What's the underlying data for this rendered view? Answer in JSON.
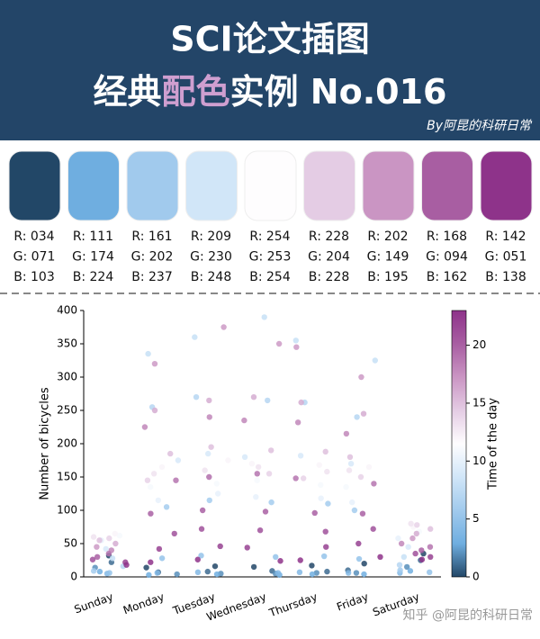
{
  "header": {
    "title": "SCI论文插图",
    "subtitle_parts": [
      "经典",
      "配色",
      "实例 No.016"
    ],
    "signature": "By阿昆的科研日常"
  },
  "palette": [
    {
      "color": "#224767",
      "labels": [
        "R: 034",
        "G: 071",
        "B: 103"
      ]
    },
    {
      "color": "#6faee0",
      "labels": [
        "R: 111",
        "G: 174",
        "B: 224"
      ]
    },
    {
      "color": "#a1caed",
      "labels": [
        "R: 161",
        "G: 202",
        "B: 237"
      ]
    },
    {
      "color": "#d1e6f8",
      "labels": [
        "R: 209",
        "G: 230",
        "B: 248"
      ]
    },
    {
      "color": "#fefdfe",
      "labels": [
        "R: 254",
        "G: 253",
        "B: 254"
      ]
    },
    {
      "color": "#e4cce4",
      "labels": [
        "R: 228",
        "G: 204",
        "B: 228"
      ]
    },
    {
      "color": "#ca95c3",
      "labels": [
        "R: 202",
        "G: 149",
        "B: 195"
      ]
    },
    {
      "color": "#a85ea2",
      "labels": [
        "R: 168",
        "G: 094",
        "B: 162"
      ]
    },
    {
      "color": "#8e338a",
      "labels": [
        "R: 142",
        "G: 051",
        "B: 138"
      ]
    }
  ],
  "chart_data": {
    "type": "strip",
    "y_label": "Number of bicycles",
    "categories": [
      "Sunday",
      "Monday",
      "Tuesday",
      "Wednesday",
      "Thursday",
      "Friday",
      "Saturday"
    ],
    "hours": [
      0,
      1,
      2,
      3,
      4,
      5,
      6,
      7,
      8,
      9,
      10,
      11,
      12,
      13,
      14,
      15,
      16,
      17,
      18,
      19,
      20,
      21,
      22,
      23
    ],
    "values": [
      [
        32,
        22,
        14,
        8,
        5,
        6,
        9,
        16,
        28,
        42,
        55,
        62,
        65,
        60,
        58,
        55,
        50,
        45,
        40,
        35,
        30,
        26,
        22,
        18
      ],
      [
        14,
        7,
        4,
        3,
        6,
        28,
        105,
        255,
        335,
        175,
        115,
        135,
        165,
        155,
        145,
        185,
        250,
        320,
        225,
        145,
        95,
        65,
        42,
        22
      ],
      [
        16,
        8,
        5,
        4,
        7,
        32,
        115,
        270,
        360,
        185,
        125,
        140,
        175,
        160,
        150,
        195,
        265,
        375,
        240,
        150,
        100,
        72,
        46,
        26
      ],
      [
        15,
        9,
        5,
        3,
        6,
        30,
        112,
        265,
        390,
        180,
        120,
        145,
        170,
        165,
        155,
        190,
        270,
        350,
        235,
        155,
        98,
        70,
        44,
        24
      ],
      [
        17,
        8,
        6,
        4,
        7,
        31,
        110,
        262,
        355,
        182,
        118,
        138,
        168,
        158,
        148,
        188,
        262,
        345,
        232,
        148,
        96,
        68,
        45,
        25
      ],
      [
        20,
        10,
        6,
        4,
        6,
        27,
        100,
        240,
        325,
        170,
        112,
        135,
        165,
        160,
        150,
        180,
        245,
        300,
        215,
        140,
        95,
        72,
        50,
        30
      ],
      [
        35,
        25,
        15,
        9,
        6,
        7,
        10,
        18,
        30,
        45,
        58,
        68,
        75,
        80,
        78,
        72,
        65,
        58,
        50,
        45,
        40,
        35,
        30,
        26
      ]
    ],
    "ylim": [
      0,
      400
    ],
    "yticks": [
      0,
      50,
      100,
      150,
      200,
      250,
      300,
      350,
      400
    ],
    "colorbar": {
      "label": "Time of the day",
      "lim": [
        0,
        23
      ],
      "ticks": [
        0,
        5,
        10,
        15,
        20
      ]
    },
    "watermark": "知乎 @阿昆的科研日常"
  }
}
